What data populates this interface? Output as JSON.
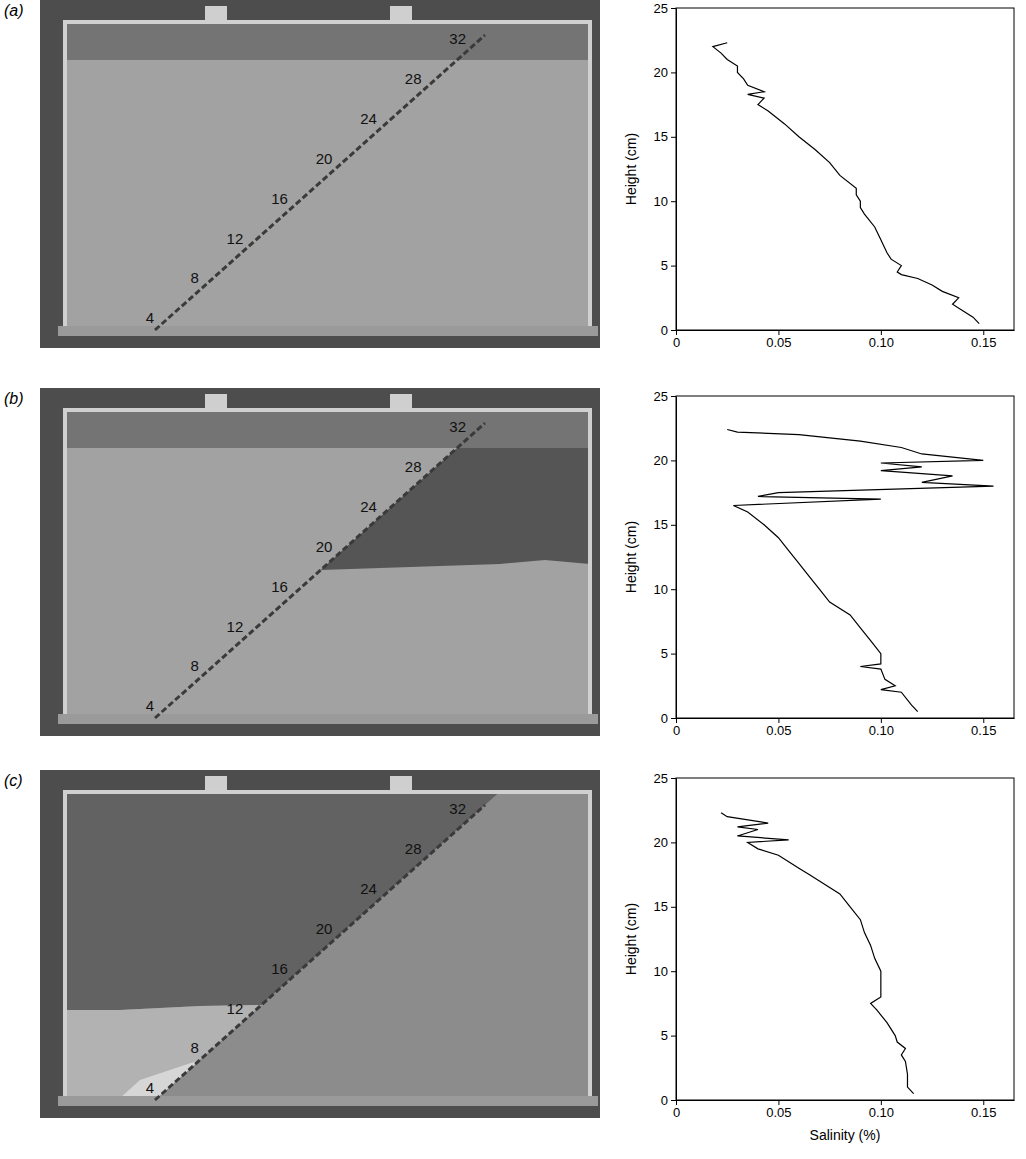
{
  "photos": [
    {
      "label": "(a)",
      "scale_labels": [
        4,
        8,
        12,
        16,
        20,
        24,
        28,
        32
      ]
    },
    {
      "label": "(b)",
      "scale_labels": [
        4,
        8,
        12,
        16,
        20,
        24,
        28,
        32
      ]
    },
    {
      "label": "(c)",
      "scale_labels": [
        4,
        8,
        12,
        16,
        20,
        24,
        28,
        32
      ]
    }
  ],
  "chart_data": [
    {
      "type": "line",
      "color": "#000000",
      "ylabel": "Height (cm)",
      "x": [
        0.148,
        0.145,
        0.14,
        0.135,
        0.138,
        0.13,
        0.125,
        0.118,
        0.11,
        0.108,
        0.11,
        0.105,
        0.103,
        0.1,
        0.097,
        0.092,
        0.09,
        0.09,
        0.088,
        0.088,
        0.08,
        0.075,
        0.068,
        0.06,
        0.053,
        0.045,
        0.04,
        0.043,
        0.035,
        0.043,
        0.035,
        0.033,
        0.03,
        0.03,
        0.025,
        0.022,
        0.018,
        0.025
      ],
      "values": [
        0.5,
        1,
        1.5,
        2,
        2.5,
        3,
        3.5,
        4,
        4.3,
        4.5,
        5,
        5.5,
        6,
        7,
        8,
        9,
        9.5,
        10,
        10.5,
        11,
        12,
        13,
        14,
        15,
        16,
        17,
        17.5,
        18,
        18.3,
        18.5,
        19,
        19.5,
        20,
        20.5,
        21,
        21.5,
        22,
        22.3
      ],
      "xlim": [
        0,
        0.165
      ],
      "ylim": [
        0,
        25
      ],
      "xticks": [
        0,
        0.05,
        {
          "value": 0.1,
          "label": "0.10"
        },
        0.15
      ],
      "yticks": [
        0,
        5,
        10,
        15,
        20,
        25
      ]
    },
    {
      "type": "line",
      "color": "#000000",
      "ylabel": "Height (cm)",
      "x": [
        0.118,
        0.115,
        0.11,
        0.1,
        0.107,
        0.102,
        0.1,
        0.09,
        0.1,
        0.1,
        0.095,
        0.09,
        0.085,
        0.075,
        0.07,
        0.065,
        0.06,
        0.055,
        0.05,
        0.043,
        0.035,
        0.028,
        0.1,
        0.04,
        0.05,
        0.155,
        0.12,
        0.135,
        0.1,
        0.12,
        0.1,
        0.15,
        0.12,
        0.11,
        0.09,
        0.06,
        0.03,
        0.025
      ],
      "values": [
        0.5,
        1,
        2,
        2.2,
        2.5,
        3,
        3.8,
        4,
        4.2,
        5,
        6,
        7,
        8,
        9,
        10,
        11,
        12,
        13,
        14,
        15,
        16,
        16.5,
        17,
        17.2,
        17.5,
        18,
        18.3,
        18.8,
        19.2,
        19.5,
        19.8,
        20,
        20.5,
        21,
        21.5,
        22,
        22.2,
        22.4
      ],
      "xlim": [
        0,
        0.165
      ],
      "ylim": [
        0,
        25
      ],
      "xticks": [
        0,
        0.05,
        {
          "value": 0.1,
          "label": "0.10"
        },
        0.15
      ],
      "yticks": [
        0,
        5,
        10,
        15,
        20,
        25
      ]
    },
    {
      "type": "line",
      "color": "#000000",
      "ylabel": "Height (cm)",
      "xlabel": "Salinity (%)",
      "x": [
        0.116,
        0.113,
        0.113,
        0.112,
        0.11,
        0.112,
        0.108,
        0.107,
        0.103,
        0.098,
        0.095,
        0.1,
        0.1,
        0.1,
        0.097,
        0.095,
        0.092,
        0.09,
        0.085,
        0.08,
        0.07,
        0.065,
        0.06,
        0.055,
        0.05,
        0.04,
        0.035,
        0.055,
        0.03,
        0.04,
        0.03,
        0.045,
        0.025,
        0.022
      ],
      "values": [
        0.5,
        1,
        2,
        3,
        3.5,
        4,
        4.5,
        5,
        6,
        7,
        7.5,
        8,
        9,
        10,
        11,
        12,
        13,
        14,
        15,
        16,
        17,
        17.5,
        18,
        18.5,
        19,
        19.5,
        20,
        20.2,
        20.5,
        21,
        21.2,
        21.5,
        22,
        22.3
      ],
      "xlim": [
        0,
        0.165
      ],
      "ylim": [
        0,
        25
      ],
      "xticks": [
        0,
        0.05,
        {
          "value": 0.1,
          "label": "0.10"
        },
        0.15
      ],
      "yticks": [
        0,
        5,
        10,
        15,
        20,
        25
      ]
    }
  ]
}
